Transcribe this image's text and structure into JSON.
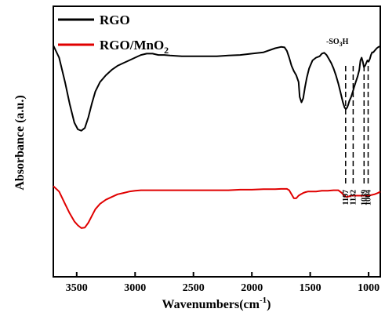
{
  "chart_data": {
    "type": "line",
    "xlabel": "Wavenumbers(cm",
    "xlabel_sup": "-1",
    "xlabel_suffix": ")",
    "ylabel": "Absorbance (a.u.)",
    "x_reversed": true,
    "xlim": [
      3700,
      900
    ],
    "ylim": [
      0,
      1
    ],
    "xticks": [
      3500,
      3000,
      2500,
      2000,
      1500,
      1000
    ],
    "y_ticks_shown": false,
    "grid": false,
    "legend_position": "top-left",
    "series": [
      {
        "name": "RGO",
        "color": "#000000",
        "x": [
          3700,
          3650,
          3600,
          3560,
          3520,
          3490,
          3460,
          3430,
          3400,
          3370,
          3340,
          3300,
          3250,
          3200,
          3150,
          3100,
          3050,
          3000,
          2950,
          2900,
          2850,
          2800,
          2750,
          2700,
          2600,
          2500,
          2400,
          2300,
          2200,
          2100,
          2000,
          1900,
          1800,
          1750,
          1720,
          1700,
          1680,
          1660,
          1640,
          1620,
          1600,
          1590,
          1575,
          1560,
          1545,
          1530,
          1510,
          1480,
          1450,
          1420,
          1400,
          1380,
          1360,
          1340,
          1320,
          1300,
          1280,
          1260,
          1240,
          1220,
          1205,
          1195,
          1185,
          1175,
          1165,
          1150,
          1135,
          1125,
          1110,
          1095,
          1080,
          1070,
          1060,
          1050,
          1040,
          1030,
          1020,
          1010,
          1000,
          990,
          980,
          970,
          960,
          950,
          930,
          915,
          900
        ],
        "y": [
          0.855,
          0.81,
          0.72,
          0.64,
          0.57,
          0.545,
          0.54,
          0.55,
          0.59,
          0.64,
          0.685,
          0.72,
          0.745,
          0.765,
          0.78,
          0.79,
          0.8,
          0.81,
          0.82,
          0.825,
          0.825,
          0.82,
          0.82,
          0.818,
          0.815,
          0.815,
          0.815,
          0.815,
          0.818,
          0.82,
          0.825,
          0.83,
          0.845,
          0.85,
          0.848,
          0.835,
          0.81,
          0.78,
          0.76,
          0.745,
          0.72,
          0.665,
          0.645,
          0.66,
          0.7,
          0.735,
          0.77,
          0.8,
          0.81,
          0.815,
          0.825,
          0.828,
          0.82,
          0.805,
          0.79,
          0.77,
          0.745,
          0.715,
          0.68,
          0.645,
          0.625,
          0.62,
          0.625,
          0.635,
          0.65,
          0.665,
          0.685,
          0.7,
          0.72,
          0.74,
          0.765,
          0.8,
          0.81,
          0.795,
          0.775,
          0.78,
          0.79,
          0.8,
          0.795,
          0.805,
          0.82,
          0.83,
          0.83,
          0.835,
          0.845,
          0.85,
          0.852
        ]
      },
      {
        "name": "RGO/MnO2",
        "color": "#e00000",
        "x": [
          3700,
          3650,
          3600,
          3560,
          3520,
          3490,
          3460,
          3430,
          3400,
          3370,
          3340,
          3300,
          3250,
          3200,
          3150,
          3100,
          3050,
          3000,
          2950,
          2900,
          2800,
          2700,
          2600,
          2500,
          2400,
          2300,
          2200,
          2100,
          2000,
          1900,
          1800,
          1750,
          1720,
          1700,
          1680,
          1660,
          1640,
          1620,
          1600,
          1580,
          1560,
          1540,
          1520,
          1500,
          1450,
          1400,
          1350,
          1300,
          1260,
          1230,
          1210,
          1190,
          1170,
          1150,
          1130,
          1100,
          1050,
          1000,
          950,
          920,
          900
        ],
        "y": [
          0.335,
          0.315,
          0.27,
          0.235,
          0.205,
          0.19,
          0.18,
          0.182,
          0.2,
          0.225,
          0.25,
          0.27,
          0.285,
          0.295,
          0.305,
          0.31,
          0.315,
          0.318,
          0.32,
          0.32,
          0.32,
          0.32,
          0.32,
          0.32,
          0.32,
          0.32,
          0.32,
          0.322,
          0.322,
          0.324,
          0.324,
          0.325,
          0.325,
          0.325,
          0.32,
          0.305,
          0.29,
          0.29,
          0.3,
          0.305,
          0.31,
          0.313,
          0.315,
          0.315,
          0.315,
          0.318,
          0.318,
          0.32,
          0.32,
          0.31,
          0.3,
          0.295,
          0.297,
          0.3,
          0.3,
          0.3,
          0.3,
          0.3,
          0.305,
          0.31,
          0.315
        ]
      }
    ],
    "legend": [
      {
        "label": "RGO",
        "color": "#000000"
      },
      {
        "label_base": "RGO/MnO",
        "label_sub": "2",
        "color": "#e00000"
      }
    ],
    "annotations": {
      "group_label": "-SO",
      "group_label_sub": "3",
      "group_label_suffix": "H",
      "peaks": [
        {
          "x": 1197,
          "label": "1197"
        },
        {
          "x": 1132,
          "label": "1132"
        },
        {
          "x": 1039,
          "label": "1039"
        },
        {
          "x": 1004,
          "label": "1004"
        }
      ]
    }
  }
}
